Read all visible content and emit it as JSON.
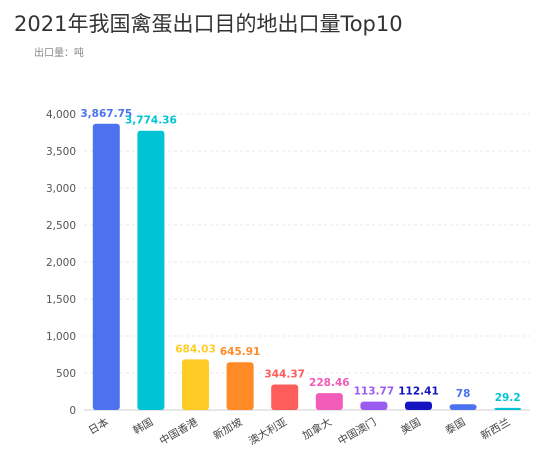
{
  "title": "2021年我国禽蛋出口目的地出口量Top10",
  "unit_label": "出口量：吨",
  "chart_data": {
    "type": "bar",
    "title": "2021年我国禽蛋出口目的地出口量Top10",
    "ylabel": "出口量：吨",
    "xlabel": "",
    "categories": [
      "日本",
      "韩国",
      "中国香港",
      "新加坡",
      "澳大利亚",
      "加拿大",
      "中国澳门",
      "美国",
      "泰国",
      "新西兰"
    ],
    "values": [
      3867.75,
      3774.36,
      684.03,
      645.91,
      344.37,
      228.46,
      113.77,
      112.41,
      78,
      29.2
    ],
    "labels": [
      "3,867.75",
      "3,774.36",
      "684.03",
      "645.91",
      "344.37",
      "228.46",
      "113.77",
      "112.41",
      "78",
      "29.2"
    ],
    "colors": [
      "#4d72f0",
      "#00c4d6",
      "#ffcc26",
      "#ff8a26",
      "#ff5c5c",
      "#f25bb8",
      "#9a5cf0",
      "#1414c2",
      "#4d72f0",
      "#00c4d6"
    ],
    "ylim": [
      0,
      4000
    ],
    "yticks": [
      0,
      500,
      1000,
      1500,
      2000,
      2500,
      3000,
      3500,
      4000
    ],
    "ytick_labels": [
      "0",
      "500",
      "1,000",
      "1,500",
      "2,000",
      "2,500",
      "3,000",
      "3,500",
      "4,000"
    ],
    "grid": true
  }
}
